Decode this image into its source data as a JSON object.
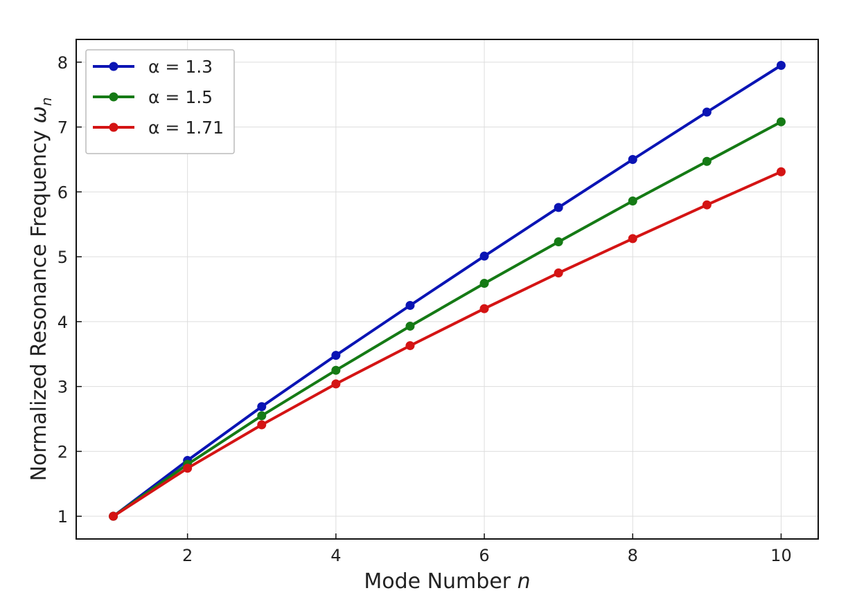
{
  "chart_data": {
    "type": "line",
    "title": "",
    "xlabel": "Mode Number n",
    "xlabel_parts": {
      "text": "Mode Number ",
      "var": "n"
    },
    "ylabel": "Normalized Resonance Frequency ωn",
    "ylabel_parts": {
      "text": "Normalized Resonance Frequency ",
      "var": "ω",
      "sub": "n"
    },
    "x": [
      1,
      2,
      3,
      4,
      5,
      6,
      7,
      8,
      9,
      10
    ],
    "xlim": [
      0.5,
      10.5
    ],
    "ylim": [
      0.65,
      8.35
    ],
    "xticks": [
      2,
      4,
      6,
      8,
      10
    ],
    "yticks": [
      1,
      2,
      3,
      4,
      5,
      6,
      7,
      8
    ],
    "grid": true,
    "legend_position": "top-left",
    "series": [
      {
        "name": "α = 1.3",
        "color": "#0a14b4",
        "values": [
          1.0,
          1.86,
          2.69,
          3.48,
          4.25,
          5.01,
          5.76,
          6.5,
          7.23,
          7.95
        ]
      },
      {
        "name": "α = 1.5",
        "color": "#157a15",
        "values": [
          1.0,
          1.8,
          2.55,
          3.25,
          3.93,
          4.59,
          5.23,
          5.86,
          6.47,
          7.08
        ]
      },
      {
        "name": "α = 1.71",
        "color": "#d41414",
        "values": [
          1.0,
          1.74,
          2.41,
          3.04,
          3.63,
          4.2,
          4.75,
          5.28,
          5.8,
          6.31
        ]
      }
    ]
  }
}
